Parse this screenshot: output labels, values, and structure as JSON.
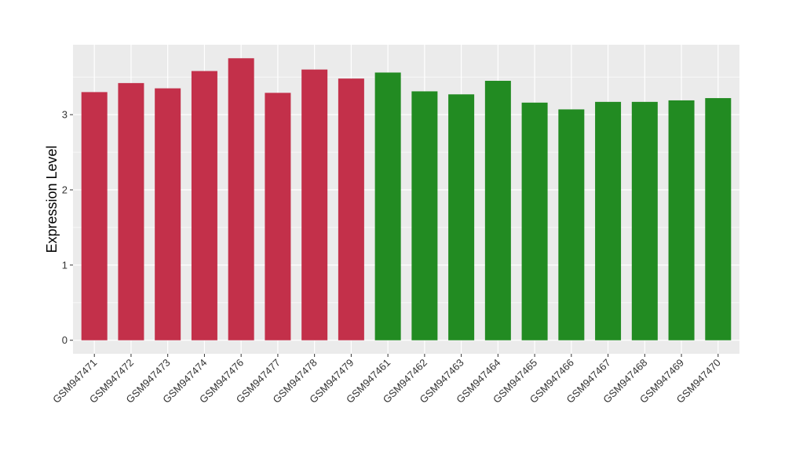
{
  "chart_data": {
    "type": "bar",
    "ylabel": "Expression Level",
    "xlabel": "",
    "ylim": [
      -0.18,
      3.93
    ],
    "yticks": [
      0,
      1,
      2,
      3
    ],
    "grid": true,
    "colors": {
      "group_a": "#C3304A",
      "group_b": "#228B22",
      "panel": "#EBEBEB",
      "gridline": "#FFFFFF"
    },
    "categories": [
      "GSM947471",
      "GSM947472",
      "GSM947473",
      "GSM947474",
      "GSM947476",
      "GSM947477",
      "GSM947478",
      "GSM947479",
      "GSM947461",
      "GSM947462",
      "GSM947463",
      "GSM947464",
      "GSM947465",
      "GSM947466",
      "GSM947467",
      "GSM947468",
      "GSM947469",
      "GSM947470"
    ],
    "values": [
      3.3,
      3.42,
      3.35,
      3.58,
      3.75,
      3.29,
      3.6,
      3.48,
      3.56,
      3.31,
      3.27,
      3.45,
      3.16,
      3.07,
      3.17,
      3.17,
      3.19,
      3.22
    ],
    "groups": [
      "a",
      "a",
      "a",
      "a",
      "a",
      "a",
      "a",
      "a",
      "b",
      "b",
      "b",
      "b",
      "b",
      "b",
      "b",
      "b",
      "b",
      "b"
    ]
  }
}
